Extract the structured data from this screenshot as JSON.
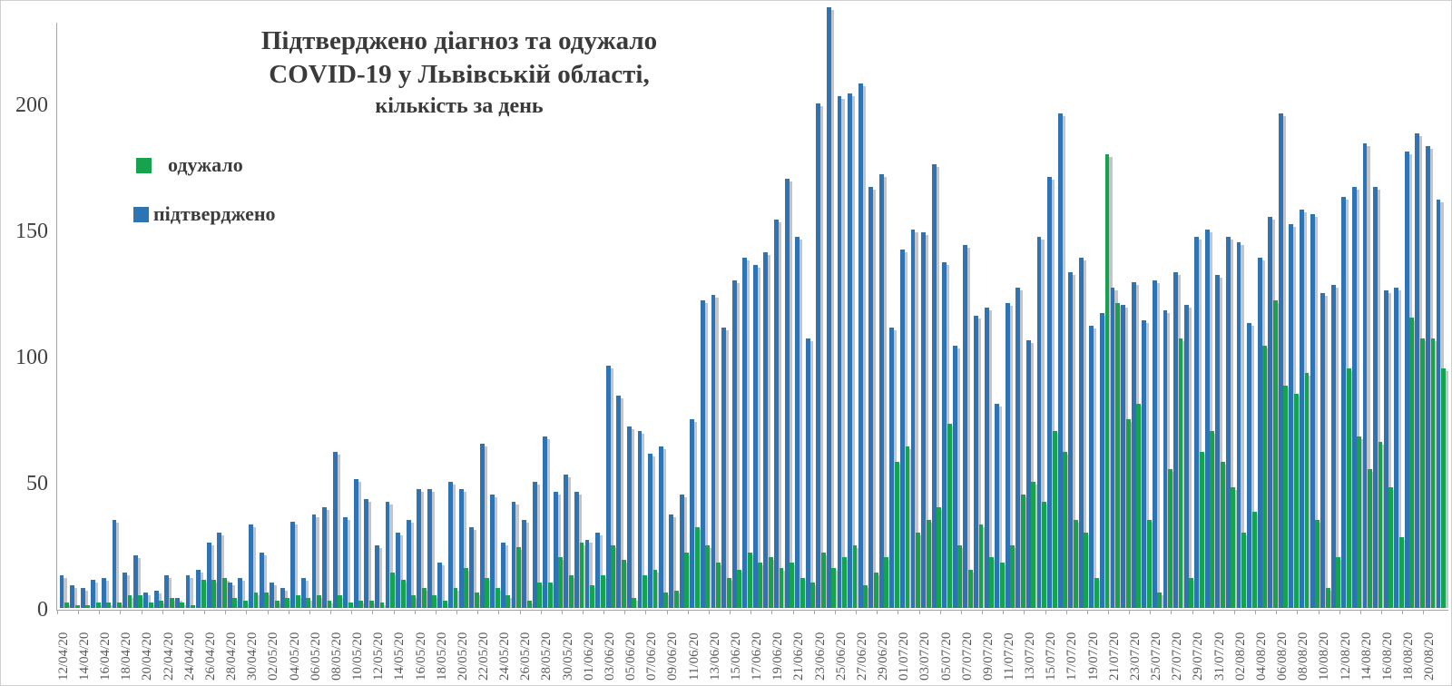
{
  "title": {
    "line1": "Підтверджено діагноз та одужало",
    "line2": "COVID-19 у Львівській області,",
    "line3": "кількість за день"
  },
  "colors": {
    "confirmed": "#2e74b5",
    "recovered": "#17a34d",
    "shadow": "#c2c6ca",
    "axis": "#a6a6a6",
    "title_text": "#3a3a3a",
    "tick_text": "#595959"
  },
  "chart_data": {
    "type": "bar",
    "title": "Підтверджено діагноз та одужало COVID-19 у Львівській області, кількість за день",
    "xlabel": "",
    "ylabel": "",
    "ylim": [
      0,
      240
    ],
    "yticks": [
      0,
      50,
      100,
      150,
      200
    ],
    "grid": false,
    "legend_position": "upper-left",
    "x_tick_label_every": 2,
    "x": [
      "12/04/20",
      "13/04/20",
      "14/04/20",
      "15/04/20",
      "16/04/20",
      "17/04/20",
      "18/04/20",
      "19/04/20",
      "20/04/20",
      "21/04/20",
      "22/04/20",
      "23/04/20",
      "24/04/20",
      "25/04/20",
      "26/04/20",
      "27/04/20",
      "28/04/20",
      "29/04/20",
      "30/04/20",
      "01/05/20",
      "02/05/20",
      "03/05/20",
      "04/05/20",
      "05/05/20",
      "06/05/20",
      "07/05/20",
      "08/05/20",
      "09/05/20",
      "10/05/20",
      "11/05/20",
      "12/05/20",
      "13/05/20",
      "14/05/20",
      "15/05/20",
      "16/05/20",
      "17/05/20",
      "18/05/20",
      "19/05/20",
      "20/05/20",
      "21/05/20",
      "22/05/20",
      "23/05/20",
      "24/05/20",
      "25/05/20",
      "26/05/20",
      "27/05/20",
      "28/05/20",
      "29/05/20",
      "30/05/20",
      "31/05/20",
      "01/06/20",
      "02/06/20",
      "03/06/20",
      "04/06/20",
      "05/06/20",
      "06/06/20",
      "07/06/20",
      "08/06/20",
      "09/06/20",
      "10/06/20",
      "11/06/20",
      "12/06/20",
      "13/06/20",
      "14/06/20",
      "15/06/20",
      "16/06/20",
      "17/06/20",
      "18/06/20",
      "19/06/20",
      "20/06/20",
      "21/06/20",
      "22/06/20",
      "23/06/20",
      "24/06/20",
      "25/06/20",
      "26/06/20",
      "27/06/20",
      "28/06/20",
      "29/06/20",
      "30/06/20",
      "01/07/20",
      "02/07/20",
      "03/07/20",
      "04/07/20",
      "05/07/20",
      "06/07/20",
      "07/07/20",
      "08/07/20",
      "09/07/20",
      "10/07/20",
      "11/07/20",
      "12/07/20",
      "13/07/20",
      "14/07/20",
      "15/07/20",
      "16/07/20",
      "17/07/20",
      "18/07/20",
      "19/07/20",
      "20/07/20",
      "21/07/20",
      "22/07/20",
      "23/07/20",
      "24/07/20",
      "25/07/20",
      "26/07/20",
      "27/07/20",
      "28/07/20",
      "29/07/20",
      "30/07/20",
      "31/07/20",
      "01/08/20",
      "02/08/20",
      "03/08/20",
      "04/08/20",
      "05/08/20",
      "06/08/20",
      "07/08/20",
      "08/08/20",
      "09/08/20",
      "10/08/20",
      "11/08/20",
      "12/08/20",
      "13/08/20",
      "14/08/20",
      "15/08/20",
      "16/08/20",
      "17/08/20",
      "18/08/20",
      "19/08/20",
      "20/08/20",
      "21/08/20"
    ],
    "series": [
      {
        "name": "одужало",
        "color": "#17a34d",
        "values": [
          2,
          1,
          1,
          2,
          2,
          2,
          5,
          5,
          2,
          3,
          4,
          2,
          1,
          11,
          11,
          12,
          4,
          3,
          6,
          6,
          3,
          4,
          5,
          4,
          5,
          3,
          5,
          2,
          3,
          3,
          2,
          14,
          11,
          5,
          8,
          5,
          3,
          8,
          16,
          6,
          12,
          8,
          5,
          24,
          3,
          10,
          10,
          20,
          13,
          26,
          9,
          13,
          25,
          19,
          4,
          13,
          15,
          6,
          7,
          22,
          32,
          25,
          18,
          12,
          15,
          22,
          18,
          20,
          16,
          18,
          12,
          10,
          22,
          16,
          20,
          25,
          9,
          14,
          20,
          58,
          64,
          30,
          35,
          40,
          73,
          25,
          15,
          33,
          20,
          18,
          25,
          45,
          50,
          42,
          70,
          62,
          35,
          30,
          12,
          180,
          121,
          75,
          81,
          35,
          6,
          55,
          107,
          12,
          62,
          70,
          58,
          48,
          30,
          38,
          104,
          122,
          88,
          85,
          93,
          35,
          8,
          20,
          95,
          68,
          55,
          66,
          48,
          28,
          115,
          107,
          107,
          95
        ]
      },
      {
        "name": "підтверджено",
        "color": "#2e74b5",
        "values": [
          13,
          9,
          8,
          11,
          12,
          35,
          14,
          21,
          6,
          7,
          13,
          4,
          13,
          15,
          26,
          30,
          10,
          12,
          33,
          22,
          10,
          8,
          34,
          12,
          37,
          40,
          62,
          36,
          51,
          43,
          25,
          42,
          30,
          35,
          47,
          47,
          18,
          50,
          47,
          32,
          65,
          45,
          26,
          42,
          35,
          50,
          68,
          46,
          53,
          46,
          27,
          30,
          96,
          84,
          72,
          70,
          61,
          64,
          37,
          45,
          75,
          122,
          124,
          111,
          130,
          139,
          136,
          141,
          154,
          170,
          147,
          107,
          200,
          238,
          203,
          204,
          208,
          167,
          172,
          111,
          142,
          150,
          149,
          176,
          137,
          104,
          144,
          116,
          119,
          81,
          121,
          127,
          106,
          147,
          171,
          196,
          133,
          139,
          112,
          117,
          127,
          120,
          129,
          114,
          130,
          118,
          133,
          120,
          147,
          150,
          132,
          147,
          145,
          113,
          139,
          155,
          196,
          152,
          158,
          156,
          125,
          128,
          163,
          167,
          184,
          167,
          126,
          127,
          181,
          188,
          183,
          162
        ]
      }
    ]
  }
}
